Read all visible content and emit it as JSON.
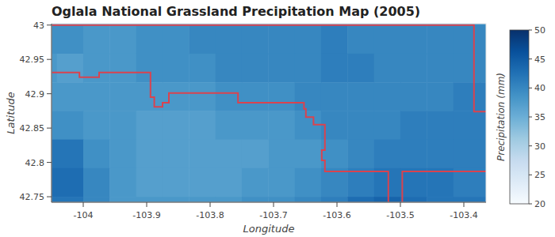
{
  "chart_data": {
    "type": "heatmap",
    "title": "Oglala National Grassland Precipitation Map (2005)",
    "x_label": "Longitude",
    "y_label": "Latitude",
    "x": [
      -104.0625,
      -104.0208,
      -103.9792,
      -103.9375,
      -103.8958,
      -103.8542,
      -103.8125,
      -103.7708,
      -103.7292,
      -103.6875,
      -103.6458,
      -103.6042,
      -103.5625,
      -103.5208,
      -103.4792,
      -103.4375,
      -103.3958,
      -103.3542
    ],
    "y": [
      43.0208,
      42.9792,
      42.9375,
      42.8958,
      42.8542,
      42.8125,
      42.7708,
      42.7292
    ],
    "values": [
      [
        39,
        39,
        39,
        39,
        39,
        39,
        39,
        39,
        39,
        39,
        39,
        39,
        39,
        39,
        39,
        39,
        39,
        39
      ],
      [
        39,
        39,
        38,
        38,
        39,
        39,
        40,
        40,
        40,
        40,
        40,
        41,
        40,
        40,
        40,
        40,
        40,
        40
      ],
      [
        38,
        37,
        38,
        38,
        39,
        39,
        39,
        40,
        40,
        40,
        40,
        41,
        41,
        40,
        40,
        40,
        40,
        40
      ],
      [
        38,
        38,
        38,
        38,
        38,
        38,
        38,
        39,
        39,
        39,
        40,
        40,
        40,
        40,
        40,
        40,
        41,
        41
      ],
      [
        39,
        39,
        38,
        38,
        37,
        37,
        37,
        38,
        38,
        38,
        39,
        40,
        40,
        40,
        41,
        41,
        41,
        41
      ],
      [
        42,
        42,
        39,
        38,
        37,
        37,
        37,
        37,
        37,
        38,
        38,
        39,
        40,
        41,
        41,
        41,
        41,
        41
      ],
      [
        43,
        43,
        40,
        38,
        37,
        37,
        37,
        37,
        38,
        38,
        39,
        40,
        41,
        42,
        42,
        42,
        41,
        41
      ],
      [
        42,
        42,
        40,
        38,
        38,
        38,
        38,
        38,
        39,
        39,
        40,
        41,
        43,
        44,
        43,
        42,
        42,
        42
      ]
    ],
    "xlim": [
      -104.05,
      -103.365
    ],
    "ylim": [
      42.742,
      43.002
    ],
    "xticks": [
      -104,
      -103.9,
      -103.8,
      -103.7,
      -103.6,
      -103.5,
      -103.4
    ],
    "yticks": [
      42.75,
      42.8,
      42.85,
      42.9,
      42.95,
      43
    ],
    "clim": [
      20,
      50
    ],
    "cticks": [
      20,
      25,
      30,
      35,
      40,
      45,
      50
    ],
    "clabel": "Precipitation (mm)",
    "boundary": [
      {
        "color": "#d9434f",
        "lon": [
          -104.06,
          -104.006,
          -104.006,
          -103.975,
          -103.975,
          -103.894,
          -103.894,
          -103.888,
          -103.888,
          -103.875,
          -103.875,
          -103.865,
          -103.865,
          -103.756,
          -103.756,
          -103.652,
          -103.652,
          -103.649,
          -103.649,
          -103.637,
          -103.637,
          -103.619,
          -103.619,
          -103.624,
          -103.624,
          -103.619,
          -103.619,
          -103.519,
          -103.519
        ],
        "lat": [
          42.931,
          42.931,
          42.924,
          42.924,
          42.931,
          42.931,
          42.895,
          42.895,
          42.881,
          42.881,
          42.887,
          42.887,
          42.901,
          42.901,
          42.887,
          42.887,
          42.878,
          42.878,
          42.866,
          42.866,
          42.855,
          42.855,
          42.818,
          42.818,
          42.803,
          42.803,
          42.787,
          42.787,
          42.73
        ]
      },
      {
        "color": "#d9434f",
        "lon": [
          -103.497,
          -103.497,
          -103.36
        ],
        "lat": [
          42.73,
          42.787,
          42.787
        ]
      },
      {
        "color": "#d9434f",
        "lon": [
          -104.06,
          -103.384,
          -103.384,
          -103.36
        ],
        "lat": [
          43.0,
          43.0,
          42.874,
          42.874
        ]
      }
    ]
  }
}
